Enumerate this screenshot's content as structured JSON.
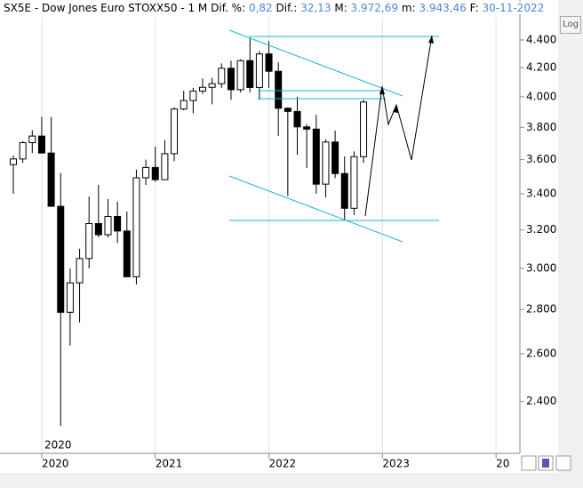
{
  "chart_data": {
    "type": "candlestick",
    "header": {
      "title": "SX5E - Dow Jones Euro STOXX50 -",
      "period": "1 M",
      "fields": [
        {
          "label": "Dif. %:",
          "value": "0,82"
        },
        {
          "label": "Dif.:",
          "value": "32,13"
        },
        {
          "label": "M:",
          "value": "3.972,69"
        },
        {
          "label": "m:",
          "value": "3.943,46"
        },
        {
          "label": "F:",
          "value": "30-11-2022"
        }
      ]
    },
    "log_button": "Log",
    "marker_label": "2020",
    "open": [
      3570,
      3604,
      3704,
      3745,
      3640,
      3329,
      2787,
      2928,
      3050,
      3234,
      3174,
      3273,
      3194,
      2958,
      3492,
      3553,
      3481,
      3636,
      3919,
      3975,
      4039,
      4064,
      4089,
      4196,
      4048,
      4250,
      4063,
      4298,
      4175,
      3924,
      3903,
      3803,
      3789,
      3455,
      3708,
      3517,
      3318,
      3618
    ],
    "high": [
      3625,
      3713,
      3782,
      3867,
      3867,
      3520,
      3000,
      3100,
      3384,
      3451,
      3370,
      3355,
      3300,
      3540,
      3600,
      3680,
      3720,
      3930,
      4040,
      4060,
      4125,
      4130,
      4230,
      4250,
      4260,
      4415,
      4320,
      4392,
      4238,
      3930,
      4000,
      3820,
      3880,
      3725,
      3780,
      3620,
      3650,
      3980
    ],
    "low": [
      3400,
      3580,
      3640,
      3640,
      3329,
      2303,
      2636,
      2740,
      3000,
      3160,
      3160,
      3130,
      2960,
      2920,
      3450,
      3470,
      3490,
      3590,
      3910,
      3890,
      4020,
      3950,
      4060,
      3980,
      4030,
      4030,
      3980,
      4060,
      3745,
      3387,
      3630,
      3550,
      3400,
      3380,
      3490,
      3250,
      3280,
      3580
    ],
    "close": [
      3604,
      3704,
      3745,
      3640,
      3329,
      2787,
      2928,
      3050,
      3234,
      3174,
      3273,
      3194,
      2958,
      3492,
      3553,
      3481,
      3636,
      3919,
      3975,
      4039,
      4064,
      4089,
      4196,
      4048,
      4250,
      4063,
      4298,
      4175,
      3924,
      3903,
      3803,
      3789,
      3455,
      3708,
      3517,
      3318,
      3618,
      3965
    ],
    "xticks": [
      "2020",
      "2021",
      "2022",
      "2023",
      "20"
    ],
    "log_scale": true,
    "ylim": [
      2200,
      4670
    ],
    "yticks": [
      {
        "value": 2400,
        "label": "2.400"
      },
      {
        "value": 2600,
        "label": "2.600"
      },
      {
        "value": 2800,
        "label": "2.800"
      },
      {
        "value": 3000,
        "label": "3.000"
      },
      {
        "value": 3200,
        "label": "3.200"
      },
      {
        "value": 3400,
        "label": "3.400"
      },
      {
        "value": 3600,
        "label": "3.600"
      },
      {
        "value": 3800,
        "label": "3.800"
      },
      {
        "value": 4000,
        "label": "4.000"
      },
      {
        "value": 4200,
        "label": "4.200"
      },
      {
        "value": 4400,
        "label": "4.400"
      }
    ],
    "up_color": "#ffffff",
    "down_color": "#000000"
  }
}
